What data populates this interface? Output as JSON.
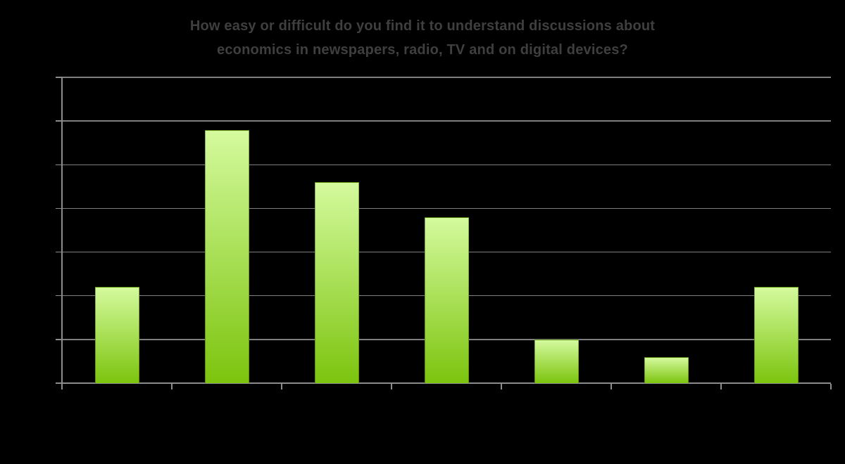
{
  "page": {
    "background_color": "#000000"
  },
  "chart_data": {
    "type": "bar",
    "title": "How easy or difficult do you find it to understand discussions about economics in newspapers, radio, TV and on digital devices?",
    "title_lines": [
      "How easy or difficult do you find it to understand discussions about",
      "economics in newspapers, radio, TV and on digital devices?"
    ],
    "categories": [
      "",
      "",
      "",
      "",
      "",
      "",
      ""
    ],
    "values": [
      11,
      29,
      23,
      19,
      5,
      3,
      11
    ],
    "ylim": [
      0,
      35
    ],
    "y_gridline_step": 5,
    "grid": true,
    "legend_position": "none",
    "axis_tick_labels_visible": false,
    "xlabel": "",
    "ylabel": "",
    "style": {
      "title_color": "#3f3f3f",
      "gridline_color": "#7f7f7f",
      "axis_color": "#8c8c8c",
      "bar_gradient_top": "#d4fa9d",
      "bar_gradient_bottom": "#7cc40e",
      "bar_border_color": "rgba(45,80,0,0.45)"
    }
  }
}
